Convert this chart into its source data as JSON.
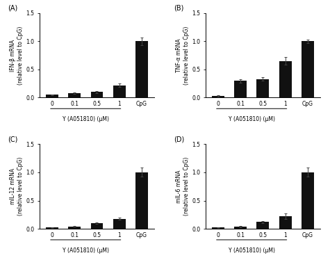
{
  "panels": [
    {
      "label": "(A)",
      "ylabel": "IFN-β mRNA\n(relative level to CpG)",
      "categories": [
        "0",
        "0.1",
        "0.5",
        "1",
        "CpG"
      ],
      "values": [
        0.05,
        0.08,
        0.1,
        0.22,
        1.0
      ],
      "errors": [
        0.01,
        0.01,
        0.015,
        0.03,
        0.07
      ],
      "ylim": [
        0,
        1.5
      ],
      "yticks": [
        0,
        0.5,
        1.0,
        1.5
      ],
      "xlabel": "Y (A051810) (μM)"
    },
    {
      "label": "(B)",
      "ylabel": "TNF-α mRNA\n(relative level to CpG)",
      "categories": [
        "0",
        "0.1",
        "0.5",
        "1",
        "CpG"
      ],
      "values": [
        0.03,
        0.3,
        0.33,
        0.65,
        1.0
      ],
      "errors": [
        0.01,
        0.03,
        0.03,
        0.07,
        0.03
      ],
      "ylim": [
        0,
        1.5
      ],
      "yticks": [
        0,
        0.5,
        1.0,
        1.5
      ],
      "xlabel": "Y (A051810) (μM)"
    },
    {
      "label": "(C)",
      "ylabel": "mIL-12 mRNA\n(relative level to CpG)",
      "categories": [
        "0",
        "0.1",
        "0.5",
        "1",
        "CpG"
      ],
      "values": [
        0.02,
        0.04,
        0.1,
        0.18,
        1.0
      ],
      "errors": [
        0.005,
        0.005,
        0.01,
        0.02,
        0.08
      ],
      "ylim": [
        0,
        1.5
      ],
      "yticks": [
        0,
        0.5,
        1.0,
        1.5
      ],
      "xlabel": "Y (A051810) (μM)"
    },
    {
      "label": "(D)",
      "ylabel": "mIL-6 mRNA\n(relative level to CpG)",
      "categories": [
        "0",
        "0.1",
        "0.5",
        "1",
        "CpG"
      ],
      "values": [
        0.02,
        0.04,
        0.12,
        0.22,
        1.0
      ],
      "errors": [
        0.005,
        0.01,
        0.02,
        0.05,
        0.08
      ],
      "ylim": [
        0,
        1.5
      ],
      "yticks": [
        0,
        0.5,
        1.0,
        1.5
      ],
      "xlabel": "Y (A051810) (μM)"
    }
  ],
  "bar_color": "#111111",
  "bar_width": 0.55,
  "background_color": "#ffffff",
  "tick_fontsize": 5.5,
  "ylabel_fontsize": 5.5,
  "xlabel_fontsize": 5.5,
  "panel_label_fontsize": 7
}
